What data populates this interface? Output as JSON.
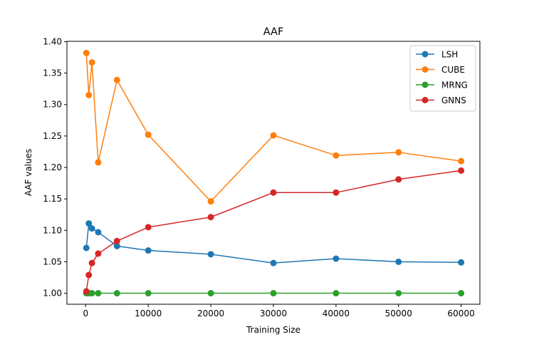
{
  "chart_data": {
    "type": "line",
    "title": "AAF",
    "xlabel": "Training Size",
    "ylabel": "AAF values",
    "xlim": [
      -3000,
      63000
    ],
    "ylim": [
      0.9825,
      1.4005
    ],
    "xticks": [
      0,
      10000,
      20000,
      30000,
      40000,
      50000,
      60000
    ],
    "xtick_labels": [
      "0",
      "10000",
      "20000",
      "30000",
      "40000",
      "50000",
      "60000"
    ],
    "yticks": [
      1.0,
      1.05,
      1.1,
      1.15,
      1.2,
      1.25,
      1.3,
      1.35,
      1.4
    ],
    "ytick_labels": [
      "1.00",
      "1.05",
      "1.10",
      "1.15",
      "1.20",
      "1.25",
      "1.30",
      "1.35",
      "1.40"
    ],
    "grid": false,
    "legend_position": "top-right",
    "x": [
      100,
      500,
      1000,
      2000,
      5000,
      10000,
      20000,
      30000,
      40000,
      50000,
      60000
    ],
    "series": [
      {
        "name": "LSH",
        "color": "#1f77b4",
        "values": [
          1.072,
          1.111,
          1.103,
          1.097,
          1.075,
          1.068,
          1.062,
          1.048,
          1.055,
          1.05,
          1.049
        ]
      },
      {
        "name": "CUBE",
        "color": "#ff7f0e",
        "values": [
          1.382,
          1.315,
          1.367,
          1.208,
          1.339,
          1.252,
          1.146,
          1.251,
          1.219,
          1.224,
          1.21
        ]
      },
      {
        "name": "MRNG",
        "color": "#2ca02c",
        "values": [
          1.0,
          1.0,
          1.0,
          1.0,
          1.0,
          1.0,
          1.0,
          1.0,
          1.0,
          1.0,
          1.0
        ]
      },
      {
        "name": "GNNS",
        "color": "#d62728",
        "values": [
          1.003,
          1.029,
          1.048,
          1.063,
          1.083,
          1.105,
          1.121,
          1.16,
          1.16,
          1.181,
          1.195
        ]
      }
    ]
  }
}
